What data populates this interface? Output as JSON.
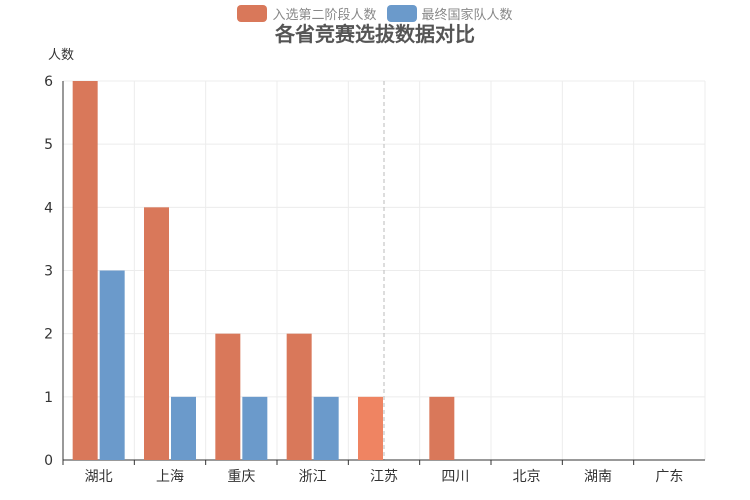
{
  "chart_data": {
    "type": "bar",
    "title": "各省竞赛选拔数据对比",
    "ylabel": "人数",
    "xlabel": "",
    "categories": [
      "湖北",
      "上海",
      "重庆",
      "浙江",
      "江苏",
      "四川",
      "北京",
      "湖南",
      "广东"
    ],
    "series": [
      {
        "name": "入选第二阶段人数",
        "color": "#d9785a",
        "values": [
          6,
          4,
          2,
          2,
          1,
          1,
          0,
          0,
          0
        ]
      },
      {
        "name": "最终国家队人数",
        "color": "#6b9acb",
        "values": [
          3,
          1,
          1,
          1,
          0,
          0,
          0,
          0,
          0
        ]
      }
    ],
    "ylim": [
      0,
      6
    ],
    "yticks": [
      0,
      1,
      2,
      3,
      4,
      5,
      6
    ],
    "grid": true,
    "legend_position": "top-center",
    "highlight_color": "#ef8462"
  }
}
